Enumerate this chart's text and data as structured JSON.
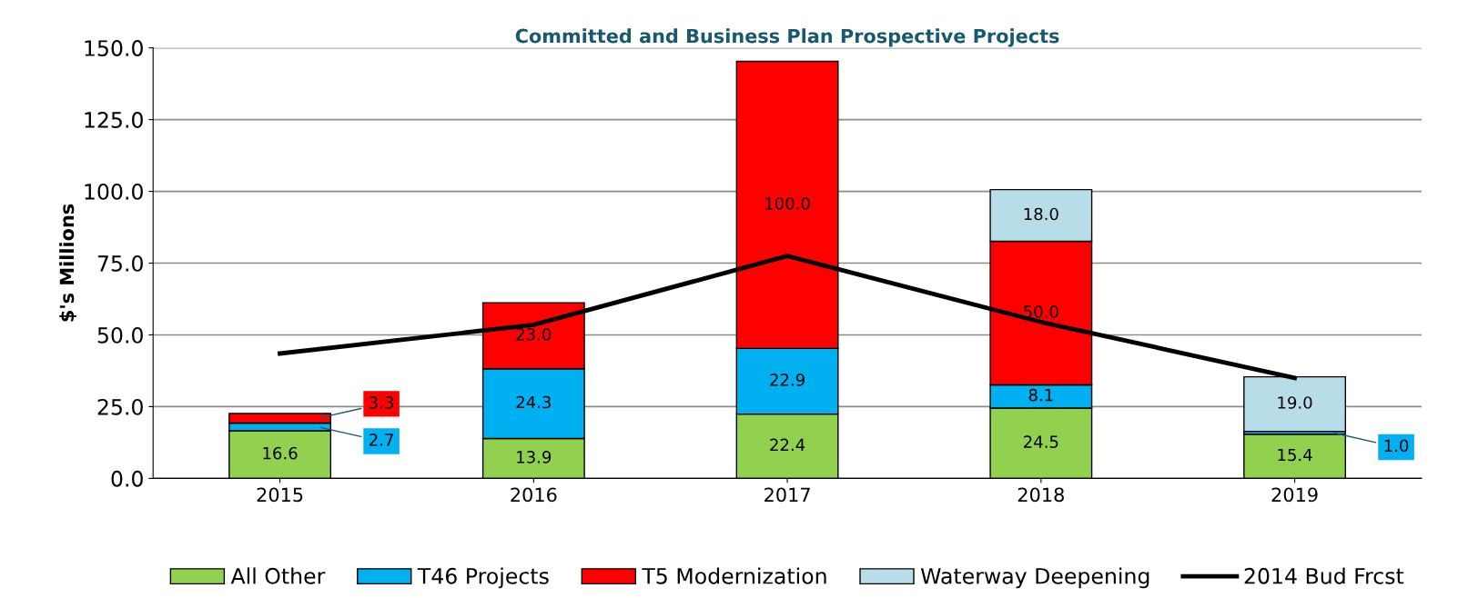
{
  "chart_data": {
    "type": "bar",
    "title": "Committed and Business Plan Prospective Projects",
    "ylabel": "$'s Millions",
    "categories": [
      "2015",
      "2016",
      "2017",
      "2018",
      "2019"
    ],
    "stacked": true,
    "series": [
      {
        "name": "All Other",
        "color": "#92d050",
        "values": [
          16.6,
          13.9,
          22.4,
          24.5,
          15.4
        ],
        "value_labels": [
          "16.6",
          "13.9",
          "22.4",
          "24.5",
          "15.4"
        ]
      },
      {
        "name": "T46 Projects",
        "color": "#00b0f0",
        "values": [
          2.7,
          24.3,
          22.9,
          8.1,
          1.0
        ],
        "value_labels": [
          "2.7",
          "24.3",
          "22.9",
          "8.1",
          "1.0"
        ]
      },
      {
        "name": "T5 Modernization",
        "color": "#ff0000",
        "values": [
          3.3,
          23.0,
          100.0,
          50.0,
          null
        ],
        "value_labels": [
          "3.3",
          "23.0",
          "100.0",
          "50.0",
          null
        ]
      },
      {
        "name": "Waterway Deepening",
        "color": "#b7dee8",
        "values": [
          null,
          null,
          null,
          18.0,
          19.0
        ],
        "value_labels": [
          null,
          null,
          null,
          "18.0",
          "19.0"
        ]
      },
      {
        "name": "2014 Bud Frcst",
        "type": "line",
        "color": "#000000",
        "values": [
          43.5,
          53.5,
          77.5,
          54.5,
          35.0
        ]
      }
    ],
    "ylim": [
      0,
      150
    ],
    "yticks": [
      {
        "value": 0,
        "label": "0.0"
      },
      {
        "value": 25,
        "label": "25.0"
      },
      {
        "value": 50,
        "label": "50.0"
      },
      {
        "value": 75,
        "label": "75.0"
      },
      {
        "value": 100,
        "label": "100.0"
      },
      {
        "value": 125,
        "label": "125.0"
      },
      {
        "value": 150,
        "label": "150.0"
      }
    ],
    "grid": "y",
    "legend": "bottom"
  }
}
